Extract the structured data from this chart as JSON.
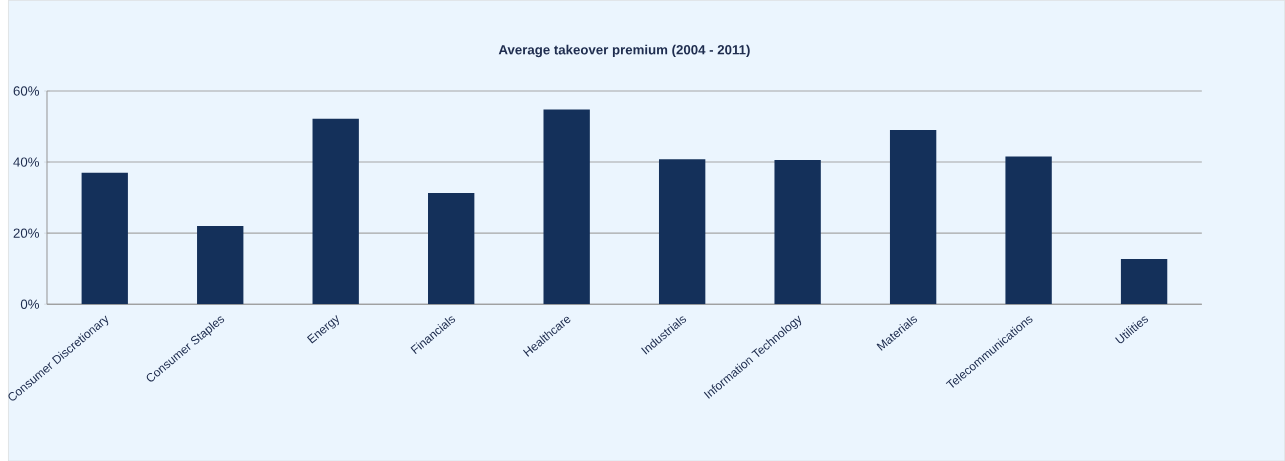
{
  "chart_data": {
    "type": "bar",
    "title": "Average takeover premium  (2004 - 2011)",
    "categories": [
      "Consumer Discretionary",
      "Consumer Staples",
      "Energy",
      "Financials",
      "Healthcare",
      "Industrials",
      "Information Technology",
      "Materials",
      "Telecommunications",
      "Utilities"
    ],
    "values": [
      37.0,
      22.0,
      52.2,
      31.3,
      54.8,
      40.8,
      40.6,
      49.0,
      41.6,
      12.7
    ],
    "color": "#14305a",
    "ylim": [
      0,
      60
    ],
    "yticks": [
      {
        "value": 0,
        "label": "0%"
      },
      {
        "value": 20,
        "label": "20%"
      },
      {
        "value": 40,
        "label": "40%"
      },
      {
        "value": 60,
        "label": "60%"
      }
    ],
    "grid": "y"
  }
}
